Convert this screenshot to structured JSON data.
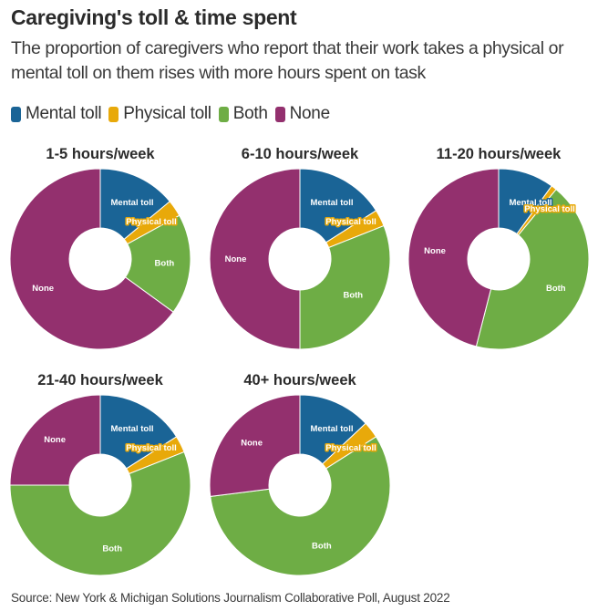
{
  "header": {
    "title": "Caregiving's toll & time spent",
    "subtitle": "The proportion of caregivers who report that their work takes a physical or mental toll on them rises with more hours spent on task"
  },
  "legend": [
    {
      "label": "Mental toll",
      "color": "#1a6496"
    },
    {
      "label": "Physical toll",
      "color": "#e8a90a"
    },
    {
      "label": "Both",
      "color": "#6ead45"
    },
    {
      "label": "None",
      "color": "#93306e"
    }
  ],
  "chart_data": [
    {
      "type": "pie",
      "title": "1-5 hours/week",
      "categories": [
        "Mental toll",
        "Physical toll",
        "Both",
        "None"
      ],
      "values": [
        14,
        3,
        18,
        65
      ],
      "unit": "percent"
    },
    {
      "type": "pie",
      "title": "6-10 hours/week",
      "categories": [
        "Mental toll",
        "Physical toll",
        "Both",
        "None"
      ],
      "values": [
        16,
        3,
        31,
        50
      ],
      "unit": "percent"
    },
    {
      "type": "pie",
      "title": "11-20 hours/week",
      "categories": [
        "Mental toll",
        "Physical toll",
        "Both",
        "None"
      ],
      "values": [
        10,
        1,
        43,
        46
      ],
      "unit": "percent"
    },
    {
      "type": "pie",
      "title": "21-40 hours/week",
      "categories": [
        "Mental toll",
        "Physical toll",
        "Both",
        "None"
      ],
      "values": [
        16,
        3,
        56,
        25
      ],
      "unit": "percent"
    },
    {
      "type": "pie",
      "title": "40+ hours/week",
      "categories": [
        "Mental toll",
        "Physical toll",
        "Both",
        "None"
      ],
      "values": [
        13,
        3,
        57,
        27
      ],
      "unit": "percent"
    }
  ],
  "footer": {
    "source": "Source: New York & Michigan Solutions Journalism Collaborative Poll, August 2022"
  }
}
